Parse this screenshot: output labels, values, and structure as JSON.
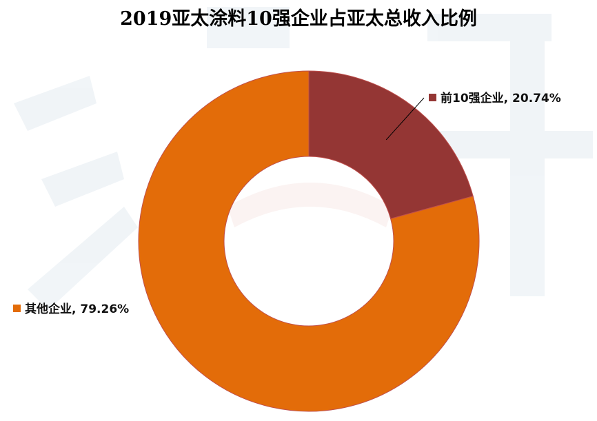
{
  "chart_data": {
    "type": "pie",
    "style": "donut",
    "title": "2019亚太涂料10强企业占亚太总收入比例",
    "categories": [
      "前10强企业",
      "其他企业"
    ],
    "values": [
      20.74,
      79.26
    ],
    "value_unit": "%",
    "colors": [
      "#943634",
      "#E36C09"
    ],
    "labels": [
      "前10强企业, 20.74%",
      "其他企业, 79.26%"
    ],
    "label_marker": "square",
    "leader_line": [
      true,
      false
    ],
    "slice_border": "#C0504D",
    "legend": "none"
  }
}
